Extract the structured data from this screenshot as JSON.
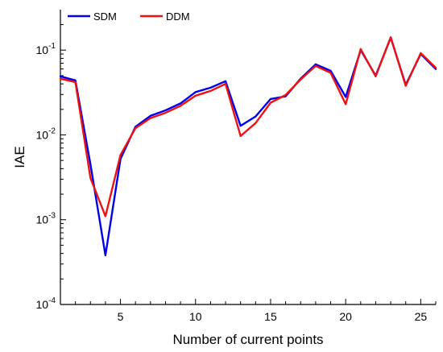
{
  "chart_data": {
    "type": "line",
    "xlabel": "Number of current points",
    "ylabel": "IAE",
    "y_scale": "log",
    "xlim": [
      1,
      26
    ],
    "ylim": [
      0.0001,
      0.3
    ],
    "x_ticks": [
      5,
      10,
      15,
      20,
      25
    ],
    "y_ticks": [
      {
        "base": "10",
        "exp": "-4",
        "value": 0.0001
      },
      {
        "base": "10",
        "exp": "-3",
        "value": 0.001
      },
      {
        "base": "10",
        "exp": "-2",
        "value": 0.01
      },
      {
        "base": "10",
        "exp": "-1",
        "value": 0.1
      }
    ],
    "legend_position": "top-left",
    "grid": false,
    "x": [
      1,
      2,
      3,
      4,
      5,
      6,
      7,
      8,
      9,
      10,
      11,
      12,
      13,
      14,
      15,
      16,
      17,
      18,
      19,
      20,
      21,
      22,
      23,
      24,
      25,
      26
    ],
    "series": [
      {
        "name": "SDM",
        "color": "#0000ee",
        "values": [
          0.049,
          0.044,
          0.0045,
          0.00038,
          0.0052,
          0.0125,
          0.0168,
          0.0195,
          0.0235,
          0.032,
          0.036,
          0.043,
          0.0128,
          0.0165,
          0.0265,
          0.0285,
          0.046,
          0.068,
          0.057,
          0.028,
          0.1,
          0.05,
          0.14,
          0.039,
          0.09,
          0.06
        ]
      },
      {
        "name": "DDM",
        "color": "#ee1111",
        "values": [
          0.046,
          0.042,
          0.0031,
          0.0011,
          0.0058,
          0.012,
          0.0158,
          0.0182,
          0.022,
          0.029,
          0.033,
          0.04,
          0.0097,
          0.0138,
          0.024,
          0.0295,
          0.045,
          0.065,
          0.054,
          0.023,
          0.103,
          0.049,
          0.142,
          0.038,
          0.092,
          0.062
        ]
      }
    ]
  }
}
